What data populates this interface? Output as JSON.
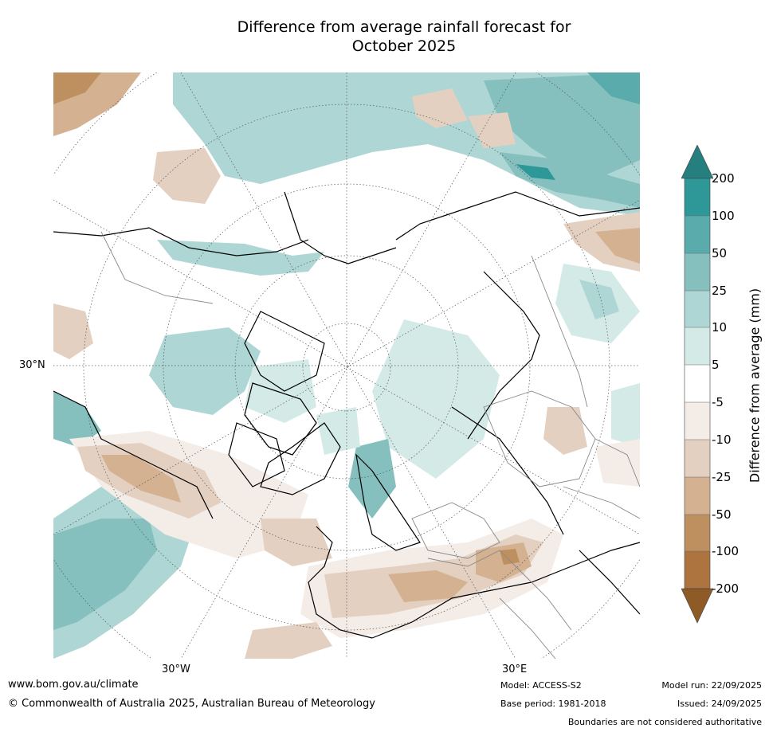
{
  "title": {
    "line1": "Difference from average rainfall forecast for",
    "line2": "October 2025"
  },
  "map": {
    "grid_labels": {
      "lat_30n": "30°N",
      "lon_30w": "30°W",
      "lon_30e": "30°E"
    },
    "colors": {
      "wet": [
        "#d4eae7",
        "#aed6d4",
        "#85c0bf",
        "#5aabac",
        "#2e9898",
        "#1f7a7a"
      ],
      "dry": [
        "#f4ece6",
        "#e3d0c0",
        "#d3b191",
        "#be9060",
        "#ad743f",
        "#8e5a26"
      ]
    }
  },
  "legend": {
    "label": "Difference from average (mm)",
    "ticks": [
      "200",
      "100",
      "50",
      "25",
      "10",
      "5",
      "-5",
      "-10",
      "-25",
      "-50",
      "-100",
      "-200"
    ],
    "colors": [
      "#1f7a7a",
      "#2e9898",
      "#5aabac",
      "#85c0bf",
      "#aed6d4",
      "#d4eae7",
      "#ffffff",
      "#f4ece6",
      "#e3d0c0",
      "#d3b191",
      "#be9060",
      "#ad743f",
      "#8e5a26"
    ]
  },
  "footer": {
    "url": "www.bom.gov.au/climate",
    "copyright": "© Commonwealth of Australia 2025, Australian Bureau of Meteorology",
    "model": "Model: ACCESS-S2",
    "base_period": "Base period: 1981-2018",
    "model_run": "Model run: 22/09/2025",
    "issued": "Issued: 24/09/2025",
    "boundaries": "Boundaries are not considered authoritative"
  }
}
